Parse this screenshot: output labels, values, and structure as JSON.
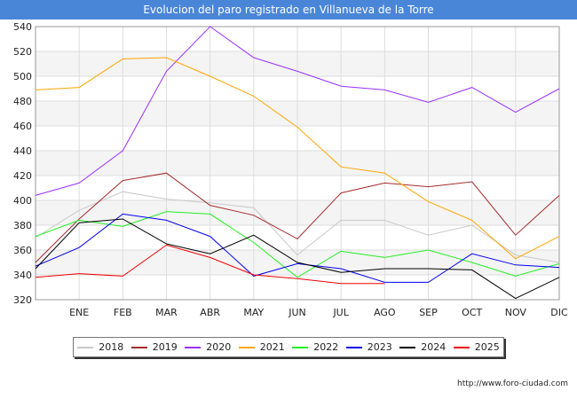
{
  "chart_data": {
    "type": "line",
    "title": "Evolucion del paro registrado en Villanueva de la Torre",
    "categories": [
      "",
      "ENE",
      "FEB",
      "MAR",
      "ABR",
      "MAY",
      "JUN",
      "JUL",
      "AGO",
      "SEP",
      "OCT",
      "NOV",
      "DIC"
    ],
    "ylim": [
      320,
      540
    ],
    "yticks": [
      320,
      340,
      360,
      380,
      400,
      420,
      440,
      460,
      480,
      500,
      520,
      540
    ],
    "grid": true,
    "legend_position": "bottom",
    "series": [
      {
        "name": "2018",
        "color": "#c8c8c8",
        "values": [
          370,
          392,
          407,
          401,
          398,
          394,
          356,
          384,
          384,
          372,
          380,
          356,
          350
        ]
      },
      {
        "name": "2019",
        "color": "#a52a2a",
        "values": [
          350,
          385,
          416,
          422,
          396,
          388,
          369,
          406,
          414,
          411,
          415,
          372,
          404
        ]
      },
      {
        "name": "2020",
        "color": "#9b30ff",
        "values": [
          404,
          414,
          440,
          504,
          540,
          515,
          504,
          492,
          489,
          479,
          491,
          471,
          490
        ]
      },
      {
        "name": "2021",
        "color": "#ffa500",
        "values": [
          489,
          491,
          514,
          515,
          500,
          484,
          459,
          427,
          422,
          399,
          384,
          353,
          371
        ]
      },
      {
        "name": "2022",
        "color": "#22ee22",
        "values": [
          371,
          384,
          379,
          391,
          389,
          366,
          338,
          359,
          354,
          360,
          350,
          339,
          349
        ]
      },
      {
        "name": "2023",
        "color": "#0000ee",
        "values": [
          347,
          362,
          389,
          384,
          371,
          339,
          349,
          345,
          334,
          334,
          357,
          348,
          346
        ]
      },
      {
        "name": "2024",
        "color": "#000000",
        "values": [
          345,
          382,
          385,
          365,
          357,
          372,
          350,
          342,
          345,
          345,
          344,
          321,
          338
        ]
      },
      {
        "name": "2025",
        "color": "#ee0000",
        "values": [
          338,
          341,
          339,
          364,
          354,
          340,
          337,
          333,
          333,
          null,
          null,
          null,
          null
        ]
      }
    ]
  },
  "footer_text": "http://www.foro-ciudad.com"
}
